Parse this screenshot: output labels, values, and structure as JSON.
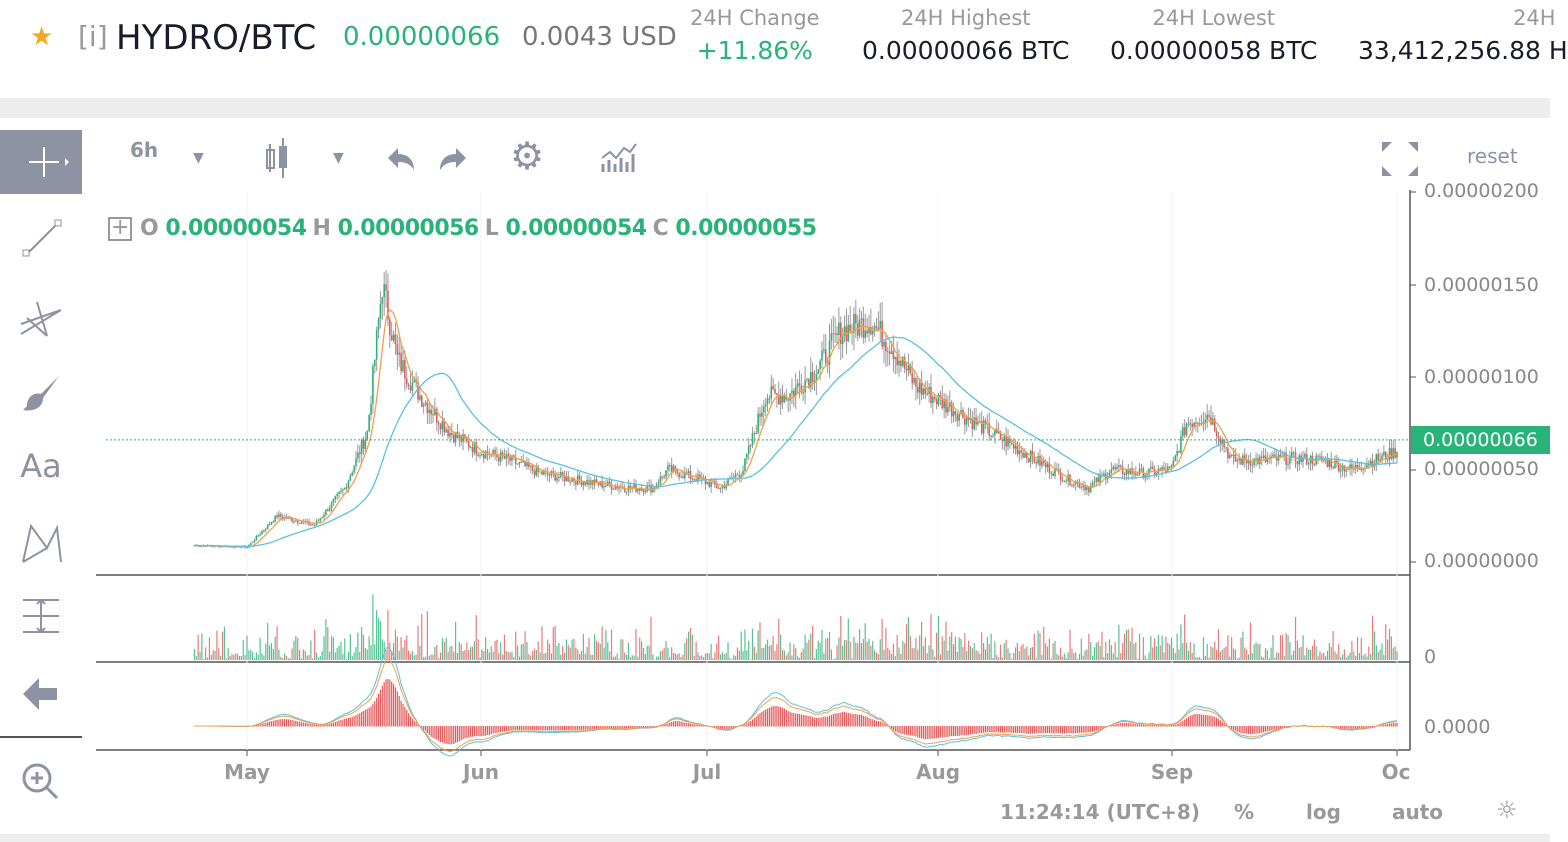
{
  "header": {
    "info": "[i]",
    "pair": "HYDRO/BTC",
    "last_price": "0.00000066",
    "usd_price": "0.0043 USD",
    "stats": [
      {
        "label": "24H Change",
        "value": "+11.86%"
      },
      {
        "label": "24H Highest",
        "value": "0.00000066 BTC"
      },
      {
        "label": "24H Lowest",
        "value": "0.00000058 BTC"
      },
      {
        "label": "24H",
        "value": "33,412,256.88 H"
      }
    ]
  },
  "toolbar": {
    "interval": "6h",
    "reset": "reset"
  },
  "left_tools": [
    "crosshair",
    "trend-line",
    "pitchfork",
    "brush",
    "text",
    "pattern",
    "measure",
    "back",
    "zoom-in"
  ],
  "text_tool_label": "Aa",
  "ohlc": {
    "o_label": "O",
    "o": "0.00000054",
    "h_label": "H",
    "h": "0.00000056",
    "l_label": "L",
    "l": "0.00000054",
    "c_label": "C",
    "c": "0.00000055"
  },
  "price_axis": [
    "0.00000200",
    "0.00000150",
    "0.00000100",
    "0.00000050",
    "0.00000000"
  ],
  "current_price_tag": "0.00000066",
  "volume_axis": "0",
  "macd_axis": "0.0000",
  "months": [
    "May",
    "Jun",
    "Jul",
    "Aug",
    "Sep",
    "Oc"
  ],
  "footer": {
    "time": "11:24:14 (UTC+8)",
    "percent": "%",
    "log": "log",
    "auto": "auto"
  },
  "colors": {
    "up": "#2ab27b",
    "down": "#e55a5a",
    "ma_fast": "#f0a04b",
    "ma_slow": "#5bc0de",
    "accent": "#2ab27b"
  },
  "chart_data": {
    "type": "candlestick",
    "ylim": [
      0,
      2e-06
    ],
    "unit": "BTC",
    "dates": [
      "Apr 24",
      "May 1",
      "May 5",
      "May 10",
      "May 14",
      "May 17",
      "May 19",
      "May 21",
      "May 24",
      "May 28",
      "Jun 1",
      "Jun 5",
      "Jun 9",
      "Jun 13",
      "Jun 17",
      "Jun 21",
      "Jun 24",
      "Jun 26",
      "Jun 30",
      "Jul 3",
      "Jul 6",
      "Jul 9",
      "Jul 12",
      "Jul 16",
      "Jul 19",
      "Jul 23",
      "Jul 26",
      "Jul 29",
      "Aug 2",
      "Aug 6",
      "Aug 10",
      "Aug 14",
      "Aug 18",
      "Aug 21",
      "Aug 24",
      "Aug 28",
      "Sep 1",
      "Sep 3",
      "Sep 6",
      "Sep 9",
      "Sep 13",
      "Sep 17",
      "Sep 21",
      "Sep 25",
      "Sep 28",
      "Oct 1"
    ],
    "close": [
      9e-08,
      8e-08,
      2.5e-07,
      2e-07,
      4e-07,
      7e-07,
      1.5e-06,
      1.1e-06,
      9e-07,
      7e-07,
      6e-07,
      5.5e-07,
      4.8e-07,
      4.5e-07,
      4.2e-07,
      4e-07,
      4e-07,
      5e-07,
      4.5e-07,
      4e-07,
      5e-07,
      9e-07,
      9e-07,
      1.05e-06,
      1.25e-06,
      1.3e-06,
      1.15e-06,
      9.5e-07,
      8.5e-07,
      7.5e-07,
      6.5e-07,
      5.5e-07,
      4.5e-07,
      4e-07,
      5e-07,
      4.8e-07,
      5e-07,
      7.5e-07,
      8e-07,
      5.5e-07,
      5.5e-07,
      5.6e-07,
      5.5e-07,
      5e-07,
      5.5e-07,
      6e-07
    ]
  }
}
